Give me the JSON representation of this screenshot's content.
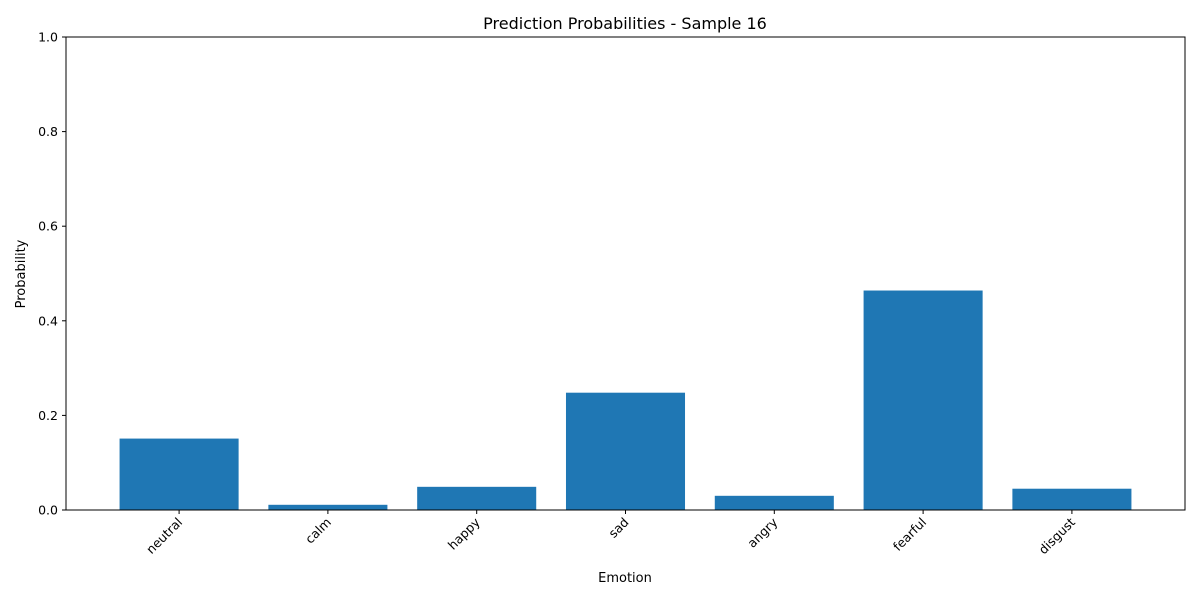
{
  "chart_data": {
    "type": "bar",
    "title": "Prediction Probabilities - Sample 16",
    "xlabel": "Emotion",
    "ylabel": "Probability",
    "categories": [
      "neutral",
      "calm",
      "happy",
      "sad",
      "angry",
      "fearful",
      "disgust"
    ],
    "values": [
      0.151,
      0.011,
      0.049,
      0.248,
      0.03,
      0.464,
      0.045
    ],
    "ylim": [
      0,
      1.0
    ],
    "yticks": [
      "0.0",
      "0.2",
      "0.4",
      "0.6",
      "0.8",
      "1.0"
    ],
    "bar_color": "#1f77b4",
    "grid": false,
    "legend": "none"
  }
}
